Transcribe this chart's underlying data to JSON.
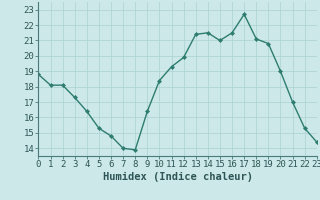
{
  "x": [
    0,
    1,
    2,
    3,
    4,
    5,
    6,
    7,
    8,
    9,
    10,
    11,
    12,
    13,
    14,
    15,
    16,
    17,
    18,
    19,
    20,
    21,
    22,
    23
  ],
  "y": [
    18.8,
    18.1,
    18.1,
    17.3,
    16.4,
    15.3,
    14.8,
    14.0,
    13.9,
    16.4,
    18.4,
    19.3,
    19.9,
    21.4,
    21.5,
    21.0,
    21.5,
    22.7,
    21.1,
    20.8,
    19.0,
    17.0,
    15.3,
    14.4
  ],
  "line_color": "#2e7d6e",
  "marker": "D",
  "marker_size": 2.0,
  "bg_color": "#cce8e8",
  "grid_color": "#b0d4d4",
  "xlabel": "Humidex (Indice chaleur)",
  "xlim": [
    0,
    23
  ],
  "ylim": [
    13.5,
    23.5
  ],
  "yticks": [
    14,
    15,
    16,
    17,
    18,
    19,
    20,
    21,
    22,
    23
  ],
  "xtick_labels": [
    "0",
    "1",
    "2",
    "3",
    "4",
    "5",
    "6",
    "7",
    "8",
    "9",
    "10",
    "11",
    "12",
    "13",
    "14",
    "15",
    "16",
    "17",
    "18",
    "19",
    "20",
    "21",
    "22",
    "23"
  ],
  "xlabel_fontsize": 7.5,
  "tick_fontsize": 6.5,
  "line_width": 1.0
}
